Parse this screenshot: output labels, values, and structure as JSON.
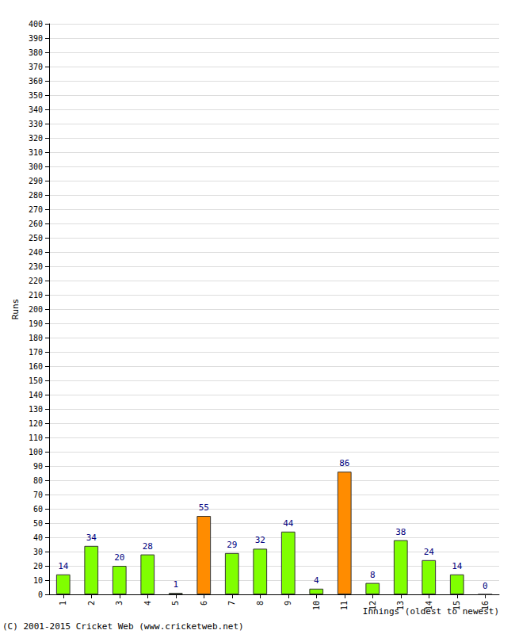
{
  "chart_data": {
    "type": "bar",
    "categories": [
      "1",
      "2",
      "3",
      "4",
      "5",
      "6",
      "7",
      "8",
      "9",
      "10",
      "11",
      "12",
      "13",
      "14",
      "15",
      "16"
    ],
    "values": [
      14,
      34,
      20,
      28,
      1,
      55,
      29,
      32,
      44,
      4,
      86,
      8,
      38,
      24,
      14,
      0
    ],
    "colors": [
      "#80ff00",
      "#80ff00",
      "#80ff00",
      "#80ff00",
      "#80ff00",
      "#ff8c00",
      "#80ff00",
      "#80ff00",
      "#80ff00",
      "#80ff00",
      "#ff8c00",
      "#80ff00",
      "#80ff00",
      "#80ff00",
      "#80ff00",
      "#80ff00"
    ],
    "xlabel": "Innings (oldest to newest)",
    "ylabel": "Runs",
    "annotations": [
      "(C) 2001-2015 Cricket Web (www.cricketweb.net)"
    ],
    "ylim": [
      0,
      400
    ],
    "yticks": [
      0,
      10,
      20,
      30,
      40,
      50,
      60,
      70,
      80,
      90,
      100,
      110,
      120,
      130,
      140,
      150,
      160,
      170,
      180,
      190,
      200,
      210,
      220,
      230,
      240,
      250,
      260,
      270,
      280,
      290,
      300,
      310,
      320,
      330,
      340,
      350,
      360,
      370,
      380,
      390,
      400
    ],
    "grid": true,
    "data_labels": true
  }
}
